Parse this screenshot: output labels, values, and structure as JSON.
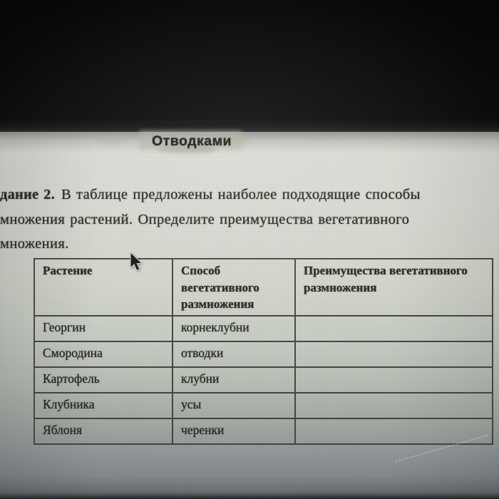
{
  "colors": {
    "paper_light": "#dfe1d9",
    "paper_mid": "#ccd1c7",
    "paper_dark": "#8f9498",
    "bar_black": "#0b0b0b",
    "ink": "#2a2823",
    "table_border": "#45463f",
    "highlight_gray": "#b3b6aa"
  },
  "overlay": {
    "word": "Отводками"
  },
  "instruction": {
    "task_label": "дание 2.",
    "line1_rest": "В таблице предложены наиболее подходящие способы",
    "line2": "множения растений. Определите преимущества вегетативного",
    "line3": "множения."
  },
  "table": {
    "headers": [
      "Растение",
      "Способ вегетативного размножения",
      "Преимущества вегетативного размножения"
    ],
    "rows": [
      {
        "plant": "Георгин",
        "method": "корнеклубни",
        "advantage": ""
      },
      {
        "plant": "Смородина",
        "method": "отводки",
        "advantage": ""
      },
      {
        "plant": "Картофель",
        "method": "клубни",
        "advantage": ""
      },
      {
        "plant": "Клубника",
        "method": "усы",
        "advantage": ""
      },
      {
        "plant": "Яблоня",
        "method": "черенки",
        "advantage": ""
      }
    ]
  }
}
